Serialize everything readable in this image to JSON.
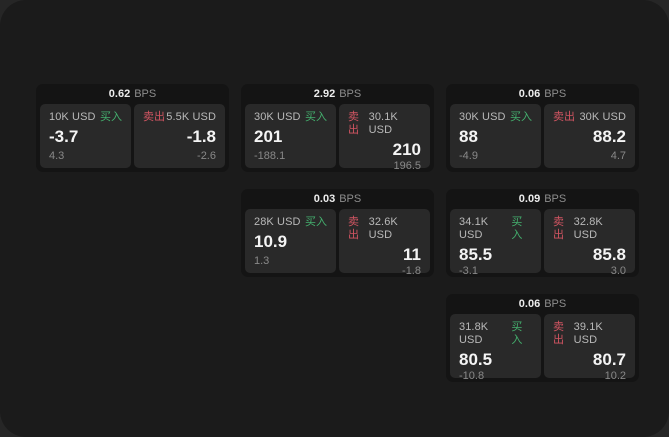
{
  "theme": {
    "window_bg": "#1b1b1b",
    "card_bg": "#141414",
    "panel_bg": "#292929",
    "buy_color": "#44b06e",
    "sell_color": "#d25562"
  },
  "cards": [
    {
      "bps_value": "0.62",
      "bps_unit": "BPS",
      "buy": {
        "amount": "10K USD",
        "side_label": "买入",
        "price": "-3.7",
        "sub": "4.3"
      },
      "sell": {
        "side_label": "卖出",
        "amount": "5.5K USD",
        "price": "-1.8",
        "sub": "-2.6"
      }
    },
    {
      "bps_value": "2.92",
      "bps_unit": "BPS",
      "buy": {
        "amount": "30K USD",
        "side_label": "买入",
        "price": "201",
        "sub": "-188.1"
      },
      "sell": {
        "side_label": "卖出",
        "amount": "30.1K USD",
        "price": "210",
        "sub": "196.5"
      }
    },
    {
      "bps_value": "0.06",
      "bps_unit": "BPS",
      "buy": {
        "amount": "30K USD",
        "side_label": "买入",
        "price": "88",
        "sub": "-4.9"
      },
      "sell": {
        "side_label": "卖出",
        "amount": "30K USD",
        "price": "88.2",
        "sub": "4.7"
      }
    },
    {
      "bps_value": "0.03",
      "bps_unit": "BPS",
      "buy": {
        "amount": "28K USD",
        "side_label": "买入",
        "price": "10.9",
        "sub": "1.3"
      },
      "sell": {
        "side_label": "卖出",
        "amount": "32.6K USD",
        "price": "11",
        "sub": "-1.8"
      }
    },
    {
      "bps_value": "0.09",
      "bps_unit": "BPS",
      "buy": {
        "amount": "34.1K USD",
        "side_label": "买入",
        "price": "85.5",
        "sub": "-3.1"
      },
      "sell": {
        "side_label": "卖出",
        "amount": "32.8K USD",
        "price": "85.8",
        "sub": "3.0"
      }
    },
    {
      "bps_value": "0.06",
      "bps_unit": "BPS",
      "buy": {
        "amount": "31.8K USD",
        "side_label": "买入",
        "price": "80.5",
        "sub": "-10.8"
      },
      "sell": {
        "side_label": "卖出",
        "amount": "39.1K USD",
        "price": "80.7",
        "sub": "10.2"
      }
    }
  ]
}
